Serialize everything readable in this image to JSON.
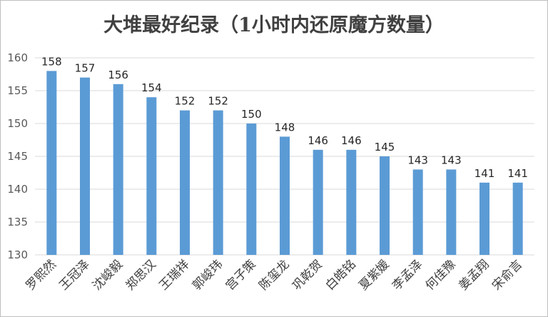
{
  "chart_data": {
    "type": "bar",
    "title": "大堆最好纪录（1小时内还原魔方数量）",
    "categories": [
      "罗熙然",
      "王冠泽",
      "沈峻毅",
      "郑思汉",
      "王瑞祥",
      "郭峻玮",
      "宫子策",
      "陈玺龙",
      "巩乾贺",
      "白皓铭",
      "夏紫媛",
      "李孟泽",
      "何佳豫",
      "姜孟翔",
      "宋俞言"
    ],
    "values": [
      158,
      157,
      156,
      154,
      152,
      152,
      150,
      148,
      146,
      146,
      145,
      143,
      143,
      141,
      141
    ],
    "ylim": [
      130,
      160
    ],
    "yticks": [
      130,
      135,
      140,
      145,
      150,
      155,
      160
    ],
    "grid": true,
    "bar_color": "#5b9bd5",
    "grid_color": "#d9d9d9"
  }
}
